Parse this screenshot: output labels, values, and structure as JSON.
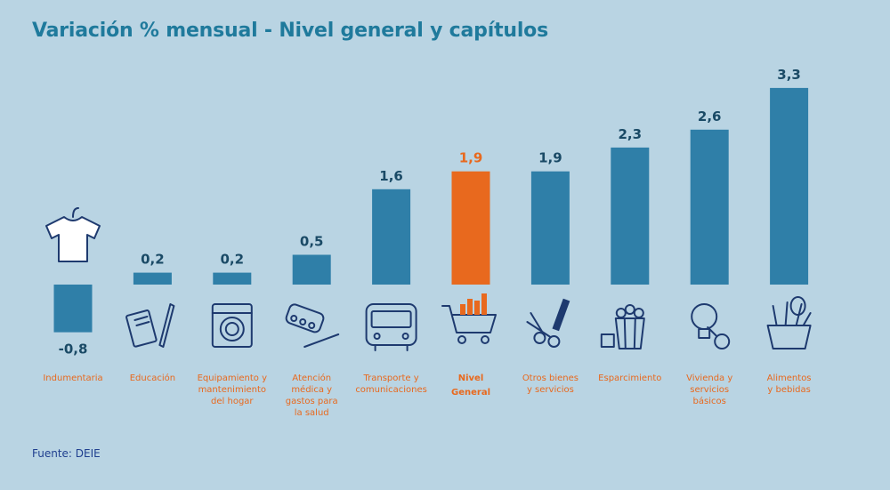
{
  "title": "Variación % mensual - Nivel general y capítulos",
  "source": "Fuente: DEIE",
  "colors": {
    "background": "#b9d4e3",
    "bar": "#2f7fa8",
    "highlight": "#e8691e",
    "title": "#1f7a9c",
    "value_label": "#1a4a66",
    "category_label": "#e8691e",
    "source": "#1f3f8f"
  },
  "chart_data": {
    "type": "bar",
    "title": "Variación % mensual - Nivel general y capítulos",
    "categories": [
      [
        "Indumentaria"
      ],
      [
        "Educación"
      ],
      [
        "Equipamiento y",
        "mantenimiento",
        "del hogar"
      ],
      [
        "Atención",
        "médica y",
        "gastos para",
        "la salud"
      ],
      [
        "Transporte y",
        "comunicaciones"
      ],
      [
        "Nivel",
        "General"
      ],
      [
        "Otros bienes",
        "y servicios"
      ],
      [
        "Esparcimiento"
      ],
      [
        "Vivienda y",
        "servicios",
        "básicos"
      ],
      [
        "Alimentos",
        "y bebidas"
      ]
    ],
    "values": [
      -0.8,
      0.2,
      0.2,
      0.5,
      1.6,
      1.9,
      1.9,
      2.3,
      2.6,
      3.3
    ],
    "value_labels": [
      "-0,8",
      "0,2",
      "0,2",
      "0,5",
      "1,6",
      "1,9",
      "1,9",
      "2,3",
      "2,6",
      "3,3"
    ],
    "highlight_index": 5,
    "icons": [
      "t-shirt-icon",
      "book-pencil-icon",
      "washing-machine-icon",
      "pills-thermometer-icon",
      "bus-icon",
      "shopping-cart-icon",
      "scissors-comb-icon",
      "popcorn-icon",
      "lightbulb-key-icon",
      "grocery-bag-icon"
    ],
    "grid": false,
    "legend": "none"
  }
}
